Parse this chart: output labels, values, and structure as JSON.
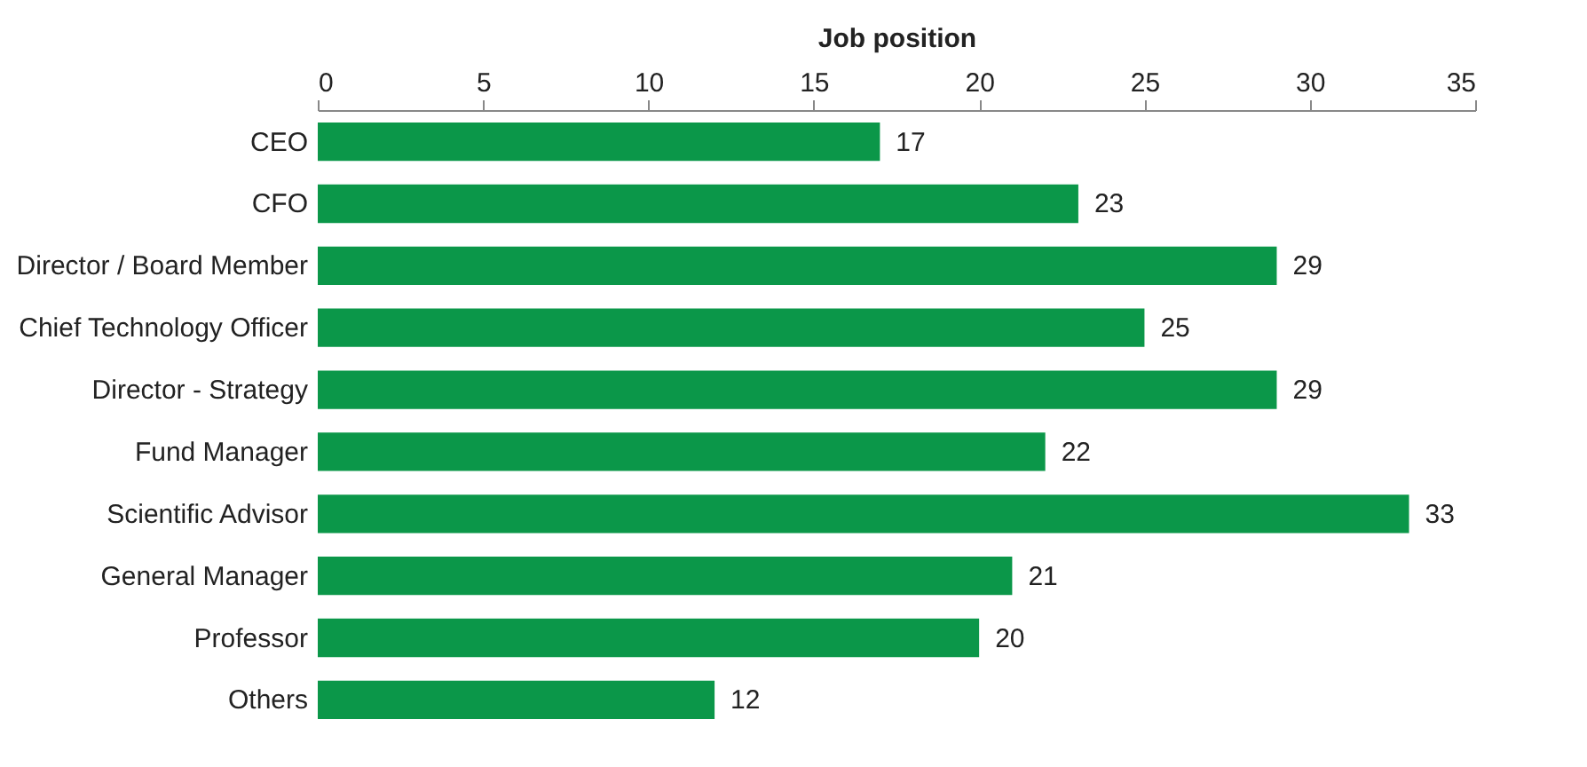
{
  "chart_data": {
    "type": "bar",
    "orientation": "horizontal",
    "xlabel": "Job position",
    "categories": [
      "CEO",
      "CFO",
      "Director / Board Member",
      "Chief Technology Officer",
      "Director - Strategy",
      "Fund Manager",
      "Scientific Advisor",
      "General Manager",
      "Professor",
      "Others"
    ],
    "values": [
      17,
      23,
      29,
      25,
      29,
      22,
      33,
      21,
      20,
      12
    ],
    "color": "#0b9749",
    "xlim": [
      0,
      35
    ],
    "xticks": [
      0,
      5,
      10,
      15,
      20,
      25,
      30,
      35
    ],
    "grid": false,
    "data_labels": true
  }
}
